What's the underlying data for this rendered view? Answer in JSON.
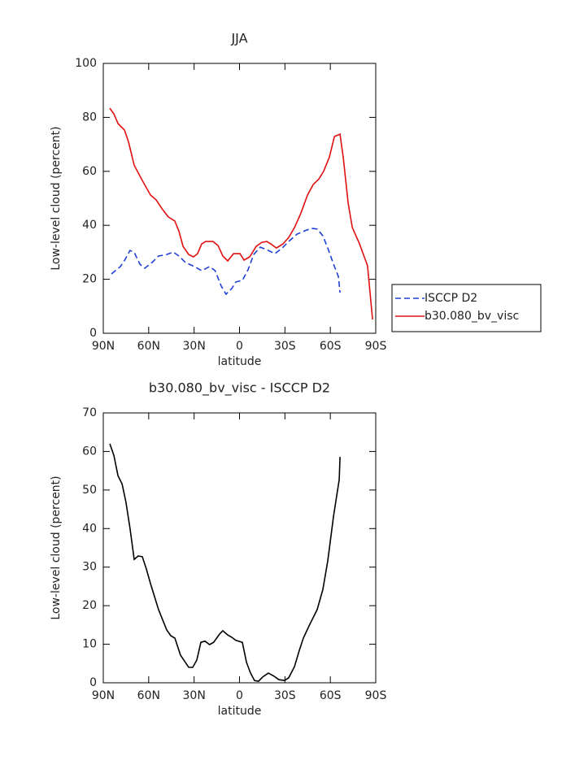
{
  "chart_data": [
    {
      "type": "line",
      "title": "JJA",
      "x_label": "latitude",
      "y_label": "Low-level cloud (percent)",
      "xlim": [
        90,
        -90
      ],
      "xticks": [
        {
          "value": 90,
          "label": "90N"
        },
        {
          "value": 60,
          "label": "60N"
        },
        {
          "value": 30,
          "label": "30N"
        },
        0,
        {
          "value": -30,
          "label": "30S"
        },
        {
          "value": -60,
          "label": "60S"
        },
        {
          "value": -90,
          "label": "90S"
        }
      ],
      "ylim": [
        0,
        100
      ],
      "yticks": [
        0,
        20,
        40,
        60,
        80,
        100
      ],
      "legend": "right",
      "series": [
        {
          "name": "ISCCP D2",
          "color": "#1f3fd6",
          "style": "dashed",
          "x": [
            84.6,
            78.7,
            76,
            72.3,
            69.6,
            65.8,
            62.6,
            57.8,
            53.5,
            48.1,
            43.8,
            40,
            35.7,
            30.9,
            25,
            19.8,
            16.1,
            12.1,
            8.9,
            5.1,
            2.4,
            -1.9,
            -5.6,
            -9.4,
            -13.7,
            -19.1,
            -23.4,
            -28.2,
            -32.5,
            -37.9,
            -43.3,
            -47.6,
            -51.3,
            -55.1,
            -58.3,
            -62.1,
            -65.3,
            -66.4
          ],
          "values": [
            22,
            24.7,
            27,
            30.7,
            30,
            25.6,
            24.1,
            26.2,
            28.6,
            29.2,
            30.1,
            28.6,
            26.2,
            25,
            23.2,
            24.7,
            23.2,
            17.5,
            14.5,
            16.6,
            19,
            19.6,
            23.5,
            29.2,
            31.9,
            30.7,
            29.5,
            31.6,
            34,
            36.7,
            38,
            38.9,
            38.6,
            36.1,
            31.6,
            25.6,
            21.1,
            15.1
          ]
        },
        {
          "name": "b30.080_bv_visc",
          "color": "#e01010",
          "style": "solid",
          "x": [
            85.7,
            83,
            80.3,
            76,
            73.3,
            69.6,
            64.2,
            58.8,
            55,
            50.8,
            47,
            42.7,
            40,
            37.3,
            33.6,
            30.4,
            27.7,
            25,
            22.3,
            17.5,
            14.2,
            11,
            7.8,
            4,
            -0.3,
            -3,
            -6.7,
            -11,
            -14.8,
            -18,
            -20.7,
            -24.4,
            -28.7,
            -32.5,
            -36.3,
            -40.6,
            -44.9,
            -48.7,
            -52.5,
            -55.7,
            -59.4,
            -62.7,
            -66.4,
            -68.6,
            -71.8,
            -74.5,
            -79.3,
            -84.6,
            -87.9
          ],
          "values": [
            83.4,
            81.3,
            77.7,
            75.3,
            70.8,
            62.3,
            56.6,
            51.2,
            49.4,
            45.8,
            43.1,
            41.6,
            37.7,
            32.2,
            29.2,
            28.3,
            29.5,
            33.1,
            34,
            34,
            32.5,
            28.6,
            26.8,
            29.5,
            29.5,
            27.1,
            28.3,
            32.2,
            33.7,
            34,
            33.1,
            31.6,
            33.1,
            35.5,
            39.2,
            44.6,
            51.2,
            55.1,
            57.2,
            60.2,
            65.4,
            72.9,
            73.8,
            64.8,
            48.2,
            39.2,
            33.1,
            25,
            5.1
          ]
        }
      ]
    },
    {
      "type": "line",
      "title": "b30.080_bv_visc - ISCCP D2",
      "x_label": "latitude",
      "y_label": "Low-level cloud (percent)",
      "xlim": [
        90,
        -90
      ],
      "xticks": [
        {
          "value": 90,
          "label": "90N"
        },
        {
          "value": 60,
          "label": "60N"
        },
        {
          "value": 30,
          "label": "30N"
        },
        0,
        {
          "value": -30,
          "label": "30S"
        },
        {
          "value": -60,
          "label": "60S"
        },
        {
          "value": -90,
          "label": "90S"
        }
      ],
      "ylim": [
        0,
        70
      ],
      "yticks": [
        0,
        10,
        20,
        30,
        40,
        50,
        60,
        70
      ],
      "series": [
        {
          "color": "#000000",
          "style": "solid",
          "x": [
            85.7,
            83,
            80.3,
            77.6,
            75,
            72.3,
            69.6,
            66.9,
            64.2,
            61.5,
            58.8,
            53.5,
            48.1,
            45.4,
            42.7,
            39,
            33.6,
            30.9,
            28.2,
            25.5,
            22.8,
            19.8,
            17.1,
            13.2,
            11,
            7.8,
            5.1,
            2.4,
            -1.9,
            -4.6,
            -7.3,
            -9.9,
            -12.6,
            -15.3,
            -19.1,
            -22.8,
            -26,
            -29.8,
            -32.5,
            -36.3,
            -39.5,
            -42.2,
            -46,
            -51.3,
            -55.1,
            -58.3,
            -62.1,
            -65.9,
            -66.4
          ],
          "values": [
            62,
            59,
            53.7,
            51.6,
            46.8,
            40,
            32,
            32.9,
            32.7,
            29.5,
            25.7,
            19,
            13.7,
            12.2,
            11.6,
            7.2,
            4,
            4,
            5.9,
            10.5,
            10.8,
            9.9,
            10.5,
            12.6,
            13.5,
            12.4,
            11.8,
            11,
            10.5,
            5.3,
            2.5,
            0.6,
            0.4,
            1.5,
            2.5,
            1.7,
            0.8,
            0.6,
            1.3,
            4.2,
            8.4,
            11.6,
            14.8,
            19,
            24.2,
            31.6,
            43.2,
            52.7,
            58.6
          ]
        }
      ]
    }
  ]
}
